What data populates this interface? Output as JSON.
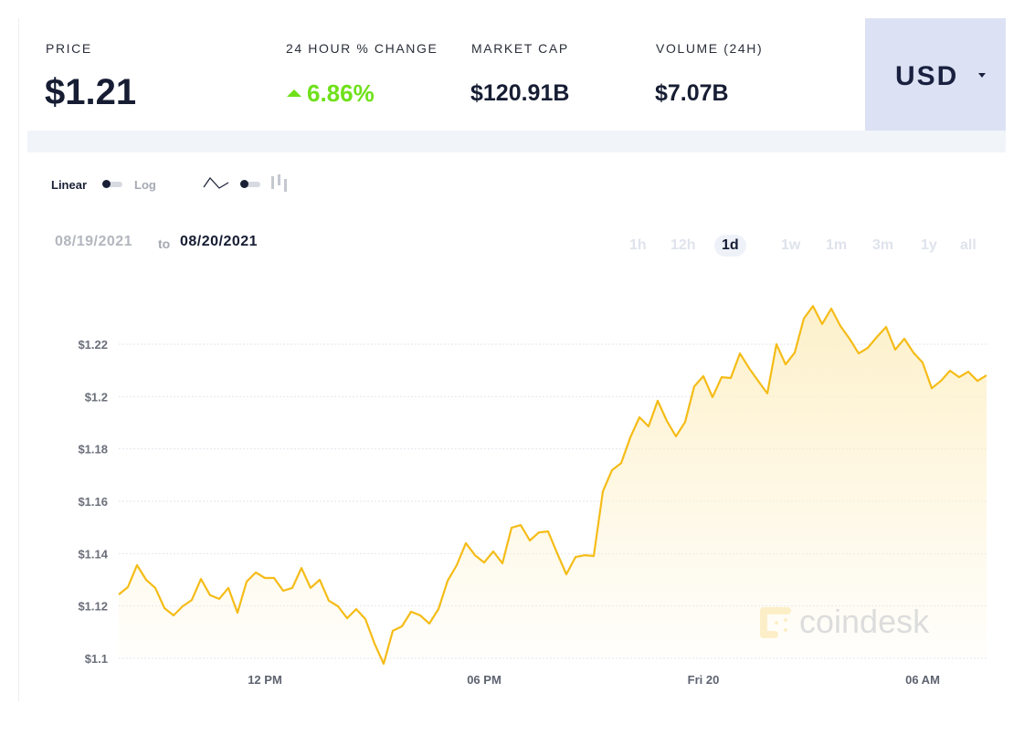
{
  "stats": {
    "price": {
      "label": "PRICE",
      "value": "$1.21"
    },
    "change": {
      "label": "24 HOUR % CHANGE",
      "value": "6.86%",
      "direction": "up",
      "color": "#6fe01a"
    },
    "market_cap": {
      "label": "MARKET CAP",
      "value": "$120.91B"
    },
    "volume": {
      "label": "VOLUME (24H)",
      "value": "$7.07B"
    }
  },
  "currency": {
    "selected": "USD",
    "icon": "caret-down-icon"
  },
  "controls": {
    "scale_linear": "Linear",
    "scale_log": "Log",
    "scale_selected": "Linear",
    "chart_type_icons": [
      "line-chart-icon",
      "candlestick-chart-icon"
    ],
    "chart_type_selected": "line"
  },
  "date_range": {
    "from": "08/19/2021",
    "to_word": "to",
    "to": "08/20/2021"
  },
  "ranges": [
    "1h",
    "12h",
    "1d",
    "1w",
    "1m",
    "3m",
    "1y",
    "all"
  ],
  "range_selected": "1d",
  "watermark": "coindesk",
  "chart_data": {
    "type": "area",
    "line_color": "#f5bc17",
    "fill_color": "#fdf0c8",
    "grid": true,
    "y_ticks": [
      "$1.22",
      "$1.2",
      "$1.18",
      "$1.16",
      "$1.14",
      "$1.12",
      "$1.1"
    ],
    "y_tick_values": [
      1.22,
      1.2,
      1.18,
      1.16,
      1.14,
      1.12,
      1.1
    ],
    "x_ticks": [
      "12 PM",
      "06 PM",
      "Fri 20",
      "06 AM"
    ],
    "x_tick_times": [
      "2021-08-19 12:00",
      "2021-08-19 18:00",
      "2021-08-20 00:00",
      "2021-08-20 06:00"
    ],
    "ylim": [
      1.1,
      1.24
    ],
    "xlim": [
      "2021-08-19 08:00",
      "2021-08-20 07:45"
    ],
    "points": [
      [
        "2021-08-19 08:00",
        1.1244
      ],
      [
        "2021-08-19 08:15",
        1.1272
      ],
      [
        "2021-08-19 08:30",
        1.1356
      ],
      [
        "2021-08-19 08:45",
        1.13
      ],
      [
        "2021-08-19 09:00",
        1.1269
      ],
      [
        "2021-08-19 09:15",
        1.1192
      ],
      [
        "2021-08-19 09:30",
        1.1164
      ],
      [
        "2021-08-19 09:45",
        1.1199
      ],
      [
        "2021-08-19 10:00",
        1.1223
      ],
      [
        "2021-08-19 10:15",
        1.1303
      ],
      [
        "2021-08-19 10:30",
        1.1241
      ],
      [
        "2021-08-19 10:45",
        1.1227
      ],
      [
        "2021-08-19 11:00",
        1.1269
      ],
      [
        "2021-08-19 11:15",
        1.1174
      ],
      [
        "2021-08-19 11:30",
        1.1293
      ],
      [
        "2021-08-19 11:45",
        1.1328
      ],
      [
        "2021-08-19 12:00",
        1.1307
      ],
      [
        "2021-08-19 12:15",
        1.1307
      ],
      [
        "2021-08-19 12:30",
        1.1258
      ],
      [
        "2021-08-19 12:45",
        1.1269
      ],
      [
        "2021-08-19 13:00",
        1.1345
      ],
      [
        "2021-08-19 13:15",
        1.1269
      ],
      [
        "2021-08-19 13:30",
        1.13
      ],
      [
        "2021-08-19 13:45",
        1.122
      ],
      [
        "2021-08-19 14:00",
        1.1199
      ],
      [
        "2021-08-19 14:15",
        1.1153
      ],
      [
        "2021-08-19 14:30",
        1.1188
      ],
      [
        "2021-08-19 14:45",
        1.115
      ],
      [
        "2021-08-19 15:00",
        1.1056
      ],
      [
        "2021-08-19 15:15",
        1.0979
      ],
      [
        "2021-08-19 15:30",
        1.1105
      ],
      [
        "2021-08-19 15:45",
        1.1122
      ],
      [
        "2021-08-19 16:00",
        1.1178
      ],
      [
        "2021-08-19 16:15",
        1.1164
      ],
      [
        "2021-08-19 16:30",
        1.1133
      ],
      [
        "2021-08-19 16:45",
        1.1188
      ],
      [
        "2021-08-19 17:00",
        1.1296
      ],
      [
        "2021-08-19 17:15",
        1.1356
      ],
      [
        "2021-08-19 17:30",
        1.144
      ],
      [
        "2021-08-19 17:45",
        1.1394
      ],
      [
        "2021-08-19 18:00",
        1.1366
      ],
      [
        "2021-08-19 18:15",
        1.1408
      ],
      [
        "2021-08-19 18:30",
        1.1363
      ],
      [
        "2021-08-19 18:45",
        1.1499
      ],
      [
        "2021-08-19 19:00",
        1.1509
      ],
      [
        "2021-08-19 19:15",
        1.145
      ],
      [
        "2021-08-19 19:30",
        1.1481
      ],
      [
        "2021-08-19 19:45",
        1.1485
      ],
      [
        "2021-08-19 20:00",
        1.1401
      ],
      [
        "2021-08-19 20:15",
        1.1321
      ],
      [
        "2021-08-19 20:30",
        1.1387
      ],
      [
        "2021-08-19 20:45",
        1.1394
      ],
      [
        "2021-08-19 21:00",
        1.1391
      ],
      [
        "2021-08-19 21:15",
        1.1638
      ],
      [
        "2021-08-19 21:30",
        1.1719
      ],
      [
        "2021-08-19 21:45",
        1.1746
      ],
      [
        "2021-08-19 22:00",
        1.1844
      ],
      [
        "2021-08-19 22:15",
        1.1921
      ],
      [
        "2021-08-19 22:30",
        1.1886
      ],
      [
        "2021-08-19 22:45",
        1.1984
      ],
      [
        "2021-08-19 23:00",
        1.1907
      ],
      [
        "2021-08-19 23:15",
        1.1848
      ],
      [
        "2021-08-19 23:30",
        1.1903
      ],
      [
        "2021-08-19 23:45",
        1.2039
      ],
      [
        "2021-08-20 00:00",
        1.2078
      ],
      [
        "2021-08-20 00:15",
        1.1998
      ],
      [
        "2021-08-20 00:30",
        1.2074
      ],
      [
        "2021-08-20 00:45",
        1.2071
      ],
      [
        "2021-08-20 01:00",
        1.2165
      ],
      [
        "2021-08-20 01:15",
        1.2109
      ],
      [
        "2021-08-20 01:30",
        1.206
      ],
      [
        "2021-08-20 01:45",
        1.2012
      ],
      [
        "2021-08-20 02:00",
        1.22
      ],
      [
        "2021-08-20 02:15",
        1.2123
      ],
      [
        "2021-08-20 02:30",
        1.2168
      ],
      [
        "2021-08-20 02:45",
        1.2298
      ],
      [
        "2021-08-20 03:00",
        1.2346
      ],
      [
        "2021-08-20 03:15",
        1.2277
      ],
      [
        "2021-08-20 03:30",
        1.2336
      ],
      [
        "2021-08-20 03:45",
        1.227
      ],
      [
        "2021-08-20 04:00",
        1.2221
      ],
      [
        "2021-08-20 04:15",
        1.2165
      ],
      [
        "2021-08-20 04:30",
        1.2186
      ],
      [
        "2021-08-20 04:45",
        1.2228
      ],
      [
        "2021-08-20 05:00",
        1.2266
      ],
      [
        "2021-08-20 05:15",
        1.2179
      ],
      [
        "2021-08-20 05:30",
        1.2221
      ],
      [
        "2021-08-20 05:45",
        1.2168
      ],
      [
        "2021-08-20 06:00",
        1.213
      ],
      [
        "2021-08-20 06:15",
        1.2032
      ],
      [
        "2021-08-20 06:30",
        1.206
      ],
      [
        "2021-08-20 06:45",
        1.2099
      ],
      [
        "2021-08-20 07:00",
        1.2074
      ],
      [
        "2021-08-20 07:15",
        1.2095
      ],
      [
        "2021-08-20 07:30",
        1.206
      ],
      [
        "2021-08-20 07:45",
        1.2081
      ]
    ]
  }
}
